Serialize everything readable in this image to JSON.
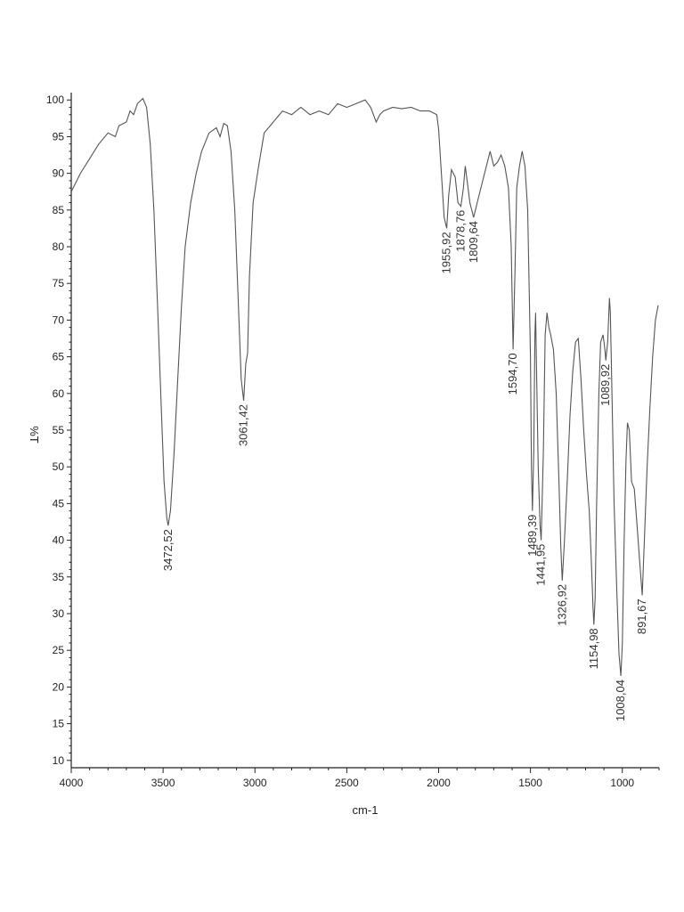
{
  "chart_data": {
    "type": "line",
    "title": "",
    "xlabel": "cm-1",
    "ylabel": "%T",
    "xlim": [
      4000,
      800
    ],
    "ylim": [
      9,
      101
    ],
    "x_reversed": true,
    "grid": false,
    "x_ticks": [
      4000,
      3500,
      3000,
      2500,
      2000,
      1500,
      1000
    ],
    "x_tick_labels": [
      "4000",
      "3500",
      "3000",
      "2500",
      "2000",
      "1500",
      "1000"
    ],
    "y_ticks": [
      10,
      15,
      20,
      25,
      30,
      35,
      40,
      45,
      50,
      55,
      60,
      65,
      70,
      75,
      80,
      85,
      90,
      95,
      100
    ],
    "y_tick_labels": [
      "10",
      "15",
      "20",
      "25",
      "30",
      "35",
      "40",
      "45",
      "50",
      "55",
      "60",
      "65",
      "70",
      "75",
      "80",
      "85",
      "90",
      "95",
      "100"
    ],
    "series": [
      {
        "line_color": "#555555",
        "points": [
          [
            4000,
            87.5
          ],
          [
            3950,
            90
          ],
          [
            3900,
            92
          ],
          [
            3850,
            94
          ],
          [
            3800,
            95.5
          ],
          [
            3760,
            95
          ],
          [
            3740,
            96.5
          ],
          [
            3700,
            97
          ],
          [
            3680,
            98.5
          ],
          [
            3660,
            98
          ],
          [
            3640,
            99.5
          ],
          [
            3610,
            100.2
          ],
          [
            3590,
            99
          ],
          [
            3570,
            94
          ],
          [
            3550,
            85
          ],
          [
            3530,
            72
          ],
          [
            3510,
            58
          ],
          [
            3495,
            48
          ],
          [
            3480,
            43
          ],
          [
            3472.52,
            42
          ],
          [
            3460,
            44
          ],
          [
            3440,
            52
          ],
          [
            3420,
            62
          ],
          [
            3400,
            72
          ],
          [
            3380,
            80
          ],
          [
            3350,
            86
          ],
          [
            3320,
            90
          ],
          [
            3290,
            93
          ],
          [
            3250,
            95.5
          ],
          [
            3210,
            96.2
          ],
          [
            3190,
            95
          ],
          [
            3170,
            96.8
          ],
          [
            3150,
            96.5
          ],
          [
            3130,
            93
          ],
          [
            3110,
            85
          ],
          [
            3090,
            72
          ],
          [
            3075,
            62
          ],
          [
            3061.42,
            59
          ],
          [
            3050,
            64
          ],
          [
            3040,
            65.5
          ],
          [
            3030,
            76
          ],
          [
            3010,
            86
          ],
          [
            2980,
            91
          ],
          [
            2950,
            95.5
          ],
          [
            2900,
            97
          ],
          [
            2850,
            98.5
          ],
          [
            2800,
            98
          ],
          [
            2750,
            99
          ],
          [
            2700,
            98
          ],
          [
            2650,
            98.5
          ],
          [
            2600,
            98
          ],
          [
            2550,
            99.5
          ],
          [
            2500,
            99
          ],
          [
            2450,
            99.5
          ],
          [
            2400,
            100
          ],
          [
            2370,
            99
          ],
          [
            2340,
            97
          ],
          [
            2320,
            98
          ],
          [
            2300,
            98.5
          ],
          [
            2250,
            99
          ],
          [
            2200,
            98.8
          ],
          [
            2150,
            99
          ],
          [
            2100,
            98.5
          ],
          [
            2050,
            98.5
          ],
          [
            2010,
            98
          ],
          [
            2000,
            96
          ],
          [
            1985,
            90
          ],
          [
            1970,
            84
          ],
          [
            1955.92,
            82.5
          ],
          [
            1945,
            87
          ],
          [
            1930,
            90.5
          ],
          [
            1910,
            89.5
          ],
          [
            1895,
            86
          ],
          [
            1878.76,
            85.5
          ],
          [
            1865,
            88
          ],
          [
            1855,
            91
          ],
          [
            1845,
            89
          ],
          [
            1830,
            86
          ],
          [
            1809.64,
            84
          ],
          [
            1790,
            86
          ],
          [
            1760,
            89
          ],
          [
            1735,
            91.5
          ],
          [
            1720,
            93
          ],
          [
            1700,
            91
          ],
          [
            1680,
            91.5
          ],
          [
            1660,
            92.5
          ],
          [
            1640,
            91
          ],
          [
            1620,
            88
          ],
          [
            1605,
            80
          ],
          [
            1594.7,
            66
          ],
          [
            1585,
            76
          ],
          [
            1575,
            88
          ],
          [
            1560,
            91
          ],
          [
            1545,
            93
          ],
          [
            1530,
            91
          ],
          [
            1515,
            85
          ],
          [
            1500,
            65
          ],
          [
            1495,
            50
          ],
          [
            1489.39,
            44
          ],
          [
            1482,
            52
          ],
          [
            1476,
            68
          ],
          [
            1472,
            71
          ],
          [
            1466,
            62
          ],
          [
            1458,
            50
          ],
          [
            1448,
            42
          ],
          [
            1441.95,
            40
          ],
          [
            1430,
            52
          ],
          [
            1420,
            68
          ],
          [
            1410,
            71
          ],
          [
            1400,
            69
          ],
          [
            1390,
            68
          ],
          [
            1375,
            66
          ],
          [
            1360,
            60
          ],
          [
            1345,
            48
          ],
          [
            1335,
            39
          ],
          [
            1326.92,
            34.5
          ],
          [
            1315,
            40
          ],
          [
            1300,
            48
          ],
          [
            1285,
            57
          ],
          [
            1270,
            63
          ],
          [
            1255,
            67
          ],
          [
            1240,
            67.5
          ],
          [
            1225,
            62
          ],
          [
            1210,
            55
          ],
          [
            1195,
            49
          ],
          [
            1180,
            44
          ],
          [
            1170,
            38
          ],
          [
            1160,
            31
          ],
          [
            1154.98,
            28.5
          ],
          [
            1148,
            32
          ],
          [
            1140,
            45
          ],
          [
            1128,
            60
          ],
          [
            1118,
            67
          ],
          [
            1105,
            68
          ],
          [
            1095,
            66
          ],
          [
            1089.92,
            64.5
          ],
          [
            1080,
            67
          ],
          [
            1070,
            73
          ],
          [
            1065,
            71
          ],
          [
            1058,
            62
          ],
          [
            1045,
            45
          ],
          [
            1030,
            33
          ],
          [
            1018,
            24.5
          ],
          [
            1008.04,
            21.5
          ],
          [
            1000,
            26
          ],
          [
            990,
            40
          ],
          [
            980,
            51
          ],
          [
            972,
            56
          ],
          [
            962,
            55
          ],
          [
            950,
            48
          ],
          [
            935,
            47
          ],
          [
            920,
            42
          ],
          [
            905,
            37
          ],
          [
            891.67,
            32.5
          ],
          [
            880,
            40
          ],
          [
            865,
            50
          ],
          [
            850,
            58
          ],
          [
            835,
            65
          ],
          [
            820,
            70
          ],
          [
            805,
            72
          ]
        ]
      }
    ],
    "peak_labels": [
      {
        "x": 3472.52,
        "y": 42,
        "text": "3472,52"
      },
      {
        "x": 3061.42,
        "y": 59,
        "text": "3061,42"
      },
      {
        "x": 1955.92,
        "y": 82.5,
        "text": "1955,92"
      },
      {
        "x": 1878.76,
        "y": 85.5,
        "text": "1878,76"
      },
      {
        "x": 1809.64,
        "y": 84,
        "text": "1809,64"
      },
      {
        "x": 1594.7,
        "y": 66,
        "text": "1594,70"
      },
      {
        "x": 1489.39,
        "y": 44,
        "text": "1489,39"
      },
      {
        "x": 1441.95,
        "y": 40,
        "text": "1441,95"
      },
      {
        "x": 1326.92,
        "y": 34.5,
        "text": "1326,92"
      },
      {
        "x": 1154.98,
        "y": 28.5,
        "text": "1154,98"
      },
      {
        "x": 1089.92,
        "y": 64.5,
        "text": "1089,92"
      },
      {
        "x": 1008.04,
        "y": 21.5,
        "text": "1008,04"
      },
      {
        "x": 891.67,
        "y": 32.5,
        "text": "891,67"
      }
    ]
  }
}
